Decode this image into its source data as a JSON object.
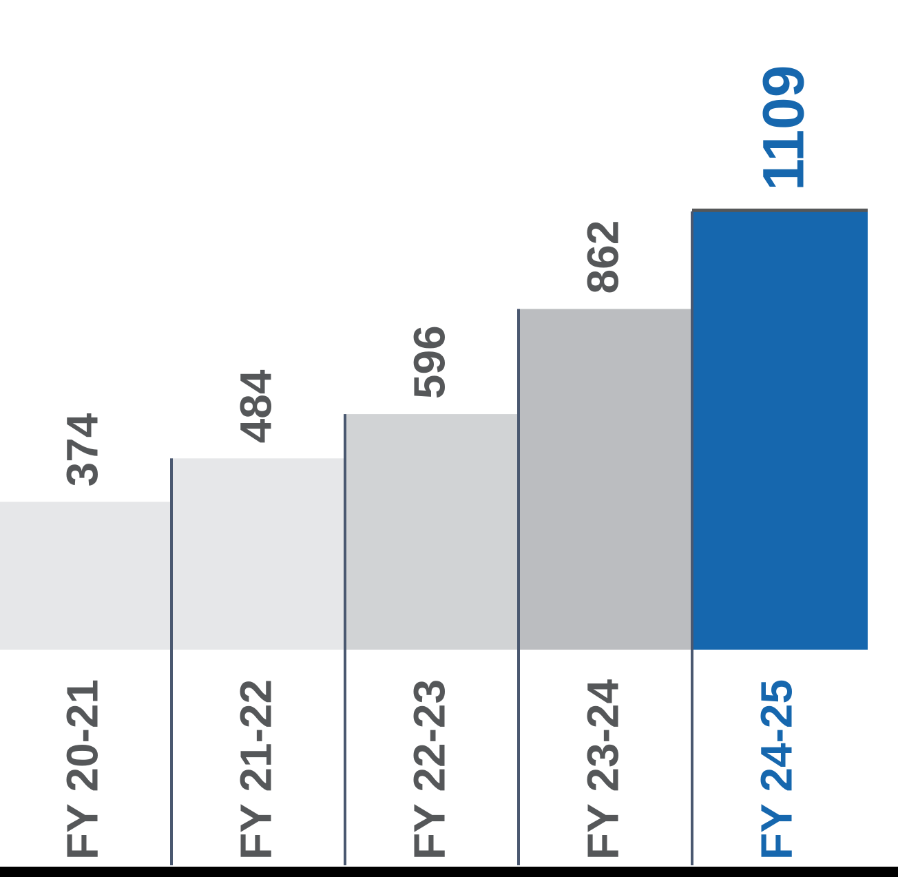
{
  "chart_data": {
    "type": "bar",
    "title": "",
    "xlabel": "",
    "ylabel": "",
    "categories": [
      "FY 20-21",
      "FY 21-22",
      "FY 22-23",
      "FY 23-24",
      "FY 24-25"
    ],
    "values": [
      374,
      484,
      596,
      862,
      1109
    ],
    "value_labels": [
      "374",
      "484",
      "596",
      "862",
      "1109"
    ],
    "ylim": [
      0,
      1200
    ],
    "grid": false,
    "legend": "none",
    "bar_colors": [
      "#e6e7e9",
      "#e6e7e9",
      "#d1d3d5",
      "#bbbdc0",
      "#1667ae"
    ],
    "label_colors": [
      "#555759",
      "#555759",
      "#555759",
      "#555759",
      "#1667ae"
    ],
    "divider_color": "#4a5870",
    "baseline_color": "#000000"
  }
}
